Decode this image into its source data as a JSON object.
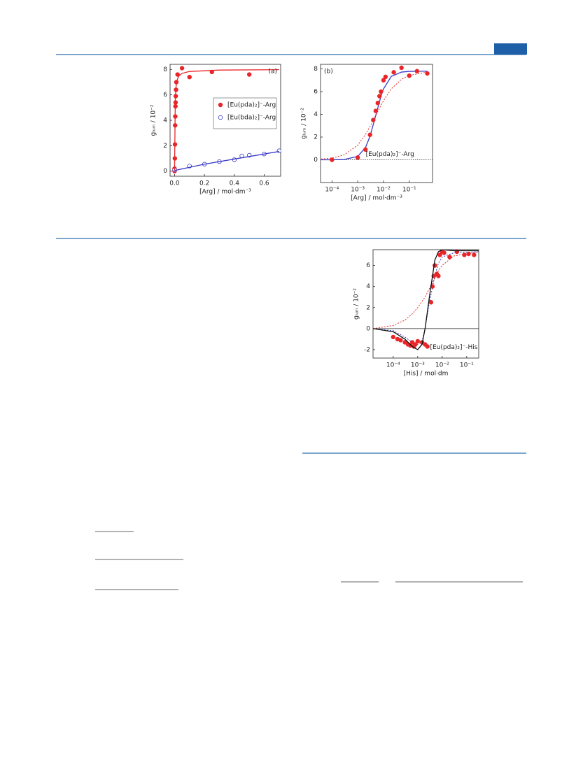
{
  "chart_data": [
    {
      "type": "scatter",
      "panel_label": "(a)",
      "x_label": "[Arg] / mol·dm⁻³",
      "y_label": "gₗᵤₘ / 10⁻²",
      "xlim": [
        -0.03,
        0.71
      ],
      "ylim": [
        -0.4,
        8.4
      ],
      "xticks": [
        {
          "value": 0,
          "label": "0.0"
        },
        0.2,
        0.4,
        0.6
      ],
      "yticks": [
        0,
        2,
        4,
        6,
        8
      ],
      "legend": "center right",
      "series": [
        {
          "name": "[Eu(pda)₂]⁻-Arg",
          "color": "#e8262a",
          "marker": "filled",
          "x": [
            0,
            0,
            0.002,
            0.003,
            0.004,
            0.005,
            0.006,
            0.007,
            0.008,
            0.01,
            0.012,
            0.02,
            0.05,
            0.1,
            0.25,
            0.5
          ],
          "values": [
            0,
            0.2,
            1,
            2.1,
            3.6,
            4.3,
            5.1,
            5.4,
            5.9,
            6.4,
            7,
            7.6,
            8.1,
            7.4,
            7.8,
            7.6
          ]
        },
        {
          "name": "[Eu(bda)₂]⁻-Arg",
          "color": "#3a3ac8",
          "marker": "open",
          "x": [
            0,
            0.1,
            0.2,
            0.3,
            0.4,
            0.45,
            0.5,
            0.6,
            0.7
          ],
          "values": [
            0.1,
            0.4,
            0.55,
            0.75,
            0.9,
            1.2,
            1.25,
            1.35,
            1.6
          ]
        },
        {
          "color": "#e8262a",
          "mode": "line",
          "dash": "solid",
          "x": [
            0,
            0.005,
            0.01,
            0.02,
            0.03,
            0.05,
            0.1,
            0.3,
            0.7
          ],
          "values": [
            0,
            5.71,
            6.67,
            7.27,
            7.5,
            7.69,
            7.84,
            7.95,
            7.98
          ]
        },
        {
          "color": "#3a3ac8",
          "mode": "line",
          "dash": "solid",
          "x": [
            0,
            0.2,
            0.4,
            0.7
          ],
          "values": [
            0.05,
            0.55,
            0.95,
            1.55
          ]
        }
      ]
    },
    {
      "type": "scatter",
      "panel_label": "(b)",
      "annotation": "[Eu(pda)₂]⁻-Arg",
      "x_label": "[Arg] / mol·dm⁻³",
      "y_label": "gₗᵤₘ / 10⁻²",
      "log_x": true,
      "zero_line": true,
      "xlim": [
        3.6e-05,
        0.8
      ],
      "ylim": [
        -2,
        8.4
      ],
      "xticks": [
        {
          "value": 0.0001,
          "label": "10⁻⁴"
        },
        {
          "value": 0.001,
          "label": "10⁻³"
        },
        {
          "value": 0.01,
          "label": "10⁻²"
        },
        {
          "value": 0.1,
          "label": "10⁻¹"
        }
      ],
      "yticks": [
        0,
        2,
        4,
        6,
        8
      ],
      "series": [
        {
          "color": "#3a3ac8",
          "mode": "line",
          "dash": "solid",
          "x": [
            3e-05,
            0.0001,
            0.0003,
            0.001,
            0.002,
            0.003,
            0.005,
            0.008,
            0.01,
            0.02,
            0.05,
            0.1,
            0.5
          ],
          "values": [
            0.0003,
            0.0031,
            0.028,
            0.3,
            1.08,
            2.07,
            3.9,
            5.6,
            6.24,
            7.34,
            7.72,
            7.78,
            7.8
          ]
        },
        {
          "color": "#e8262a",
          "mode": "line",
          "dash": "dotted",
          "x": [
            3e-05,
            0.0001,
            0.0003,
            0.001,
            0.002,
            0.003,
            0.005,
            0.008,
            0.01,
            0.02,
            0.05,
            0.1,
            0.5
          ],
          "values": [
            0.046,
            0.153,
            0.44,
            1.3,
            2.23,
            2.93,
            3.9,
            4.8,
            5.2,
            6.24,
            7.09,
            7.43,
            7.72
          ]
        },
        {
          "color": "#e8262a",
          "marker": "filled",
          "x": [
            0.0001,
            0.001,
            0.002,
            0.003,
            0.004,
            0.005,
            0.006,
            0.007,
            0.008,
            0.01,
            0.012,
            0.025,
            0.05,
            0.1,
            0.2,
            0.5
          ],
          "values": [
            0,
            0.2,
            0.9,
            2.2,
            3.5,
            4.3,
            5,
            5.6,
            6,
            7,
            7.3,
            7.7,
            8.1,
            7.4,
            7.8,
            7.6
          ]
        }
      ]
    },
    {
      "type": "scatter",
      "annotation": "[Eu(pda)₂]⁻-His",
      "x_label": "[His] / mol·dm",
      "y_label": "gₗᵤₘ / 10⁻²",
      "log_x": true,
      "zero_line": true,
      "xlim": [
        1.5e-05,
        0.31
      ],
      "ylim": [
        -2.8,
        7.5
      ],
      "xticks": [
        {
          "value": 0.0001,
          "label": "10⁻⁴"
        },
        {
          "value": 0.001,
          "label": "10⁻³"
        },
        {
          "value": 0.01,
          "label": "10⁻²"
        },
        {
          "value": 0.1,
          "label": "10⁻¹"
        }
      ],
      "yticks": [
        -2,
        0,
        2,
        4,
        6
      ],
      "series": [
        {
          "color": "#e8262a",
          "mode": "line",
          "dash": "dotted",
          "x": [
            1.5e-05,
            0.0001,
            0.0003,
            0.0006,
            0.001,
            0.0015,
            0.002,
            0.003,
            0.005,
            0.007,
            0.01,
            0.03,
            0.3
          ],
          "values": [
            0,
            0.3,
            0.8,
            1.4,
            2,
            2.6,
            3,
            3.8,
            4.8,
            5.5,
            6,
            6.9,
            7.3
          ]
        },
        {
          "color": "#3a3ac8",
          "mode": "line",
          "dash": "dotted",
          "x": [
            1.5e-05,
            0.0001,
            0.0003,
            0.0006,
            0.001,
            0.0015,
            0.002,
            0.003,
            0.005,
            0.007,
            0.01,
            0.03,
            0.3
          ],
          "values": [
            0,
            -0.2,
            -0.8,
            -1.3,
            -1.5,
            -1.2,
            0,
            2.5,
            5,
            6.2,
            6.8,
            7.2,
            7.3
          ]
        },
        {
          "color": "#e8262a",
          "marker": "filled",
          "x": [
            0.0001,
            0.00015,
            0.0002,
            0.0003,
            0.0004,
            0.0005,
            0.0006,
            0.0007,
            0.0008,
            0.001,
            0.0015,
            0.002,
            0.0025,
            0.0035,
            0.004,
            0.0045,
            0.005,
            0.006,
            0.007,
            0.008,
            0.01,
            0.012,
            0.02,
            0.04,
            0.08,
            0.12,
            0.2
          ],
          "values": [
            -0.8,
            -1,
            -1.1,
            -1.3,
            -1.5,
            -1.6,
            -1.3,
            -1.7,
            -1.5,
            -1.2,
            -1.3,
            -1.5,
            -1.7,
            2.5,
            4,
            5,
            6,
            5.2,
            5,
            7,
            7.3,
            7.2,
            6.8,
            7.3,
            7,
            7.1,
            7
          ]
        },
        {
          "color": "#111111",
          "mode": "line",
          "dash": "solid",
          "x": [
            1.5e-05,
            0.0001,
            0.0003,
            0.0006,
            0.001,
            0.0015,
            0.002,
            0.003,
            0.005,
            0.007,
            0.01,
            0.03,
            0.3
          ],
          "values": [
            0,
            -0.3,
            -1,
            -1.7,
            -2,
            -1.5,
            0,
            3,
            6.5,
            7.3,
            7.5,
            7.4,
            7.4
          ]
        }
      ]
    }
  ]
}
